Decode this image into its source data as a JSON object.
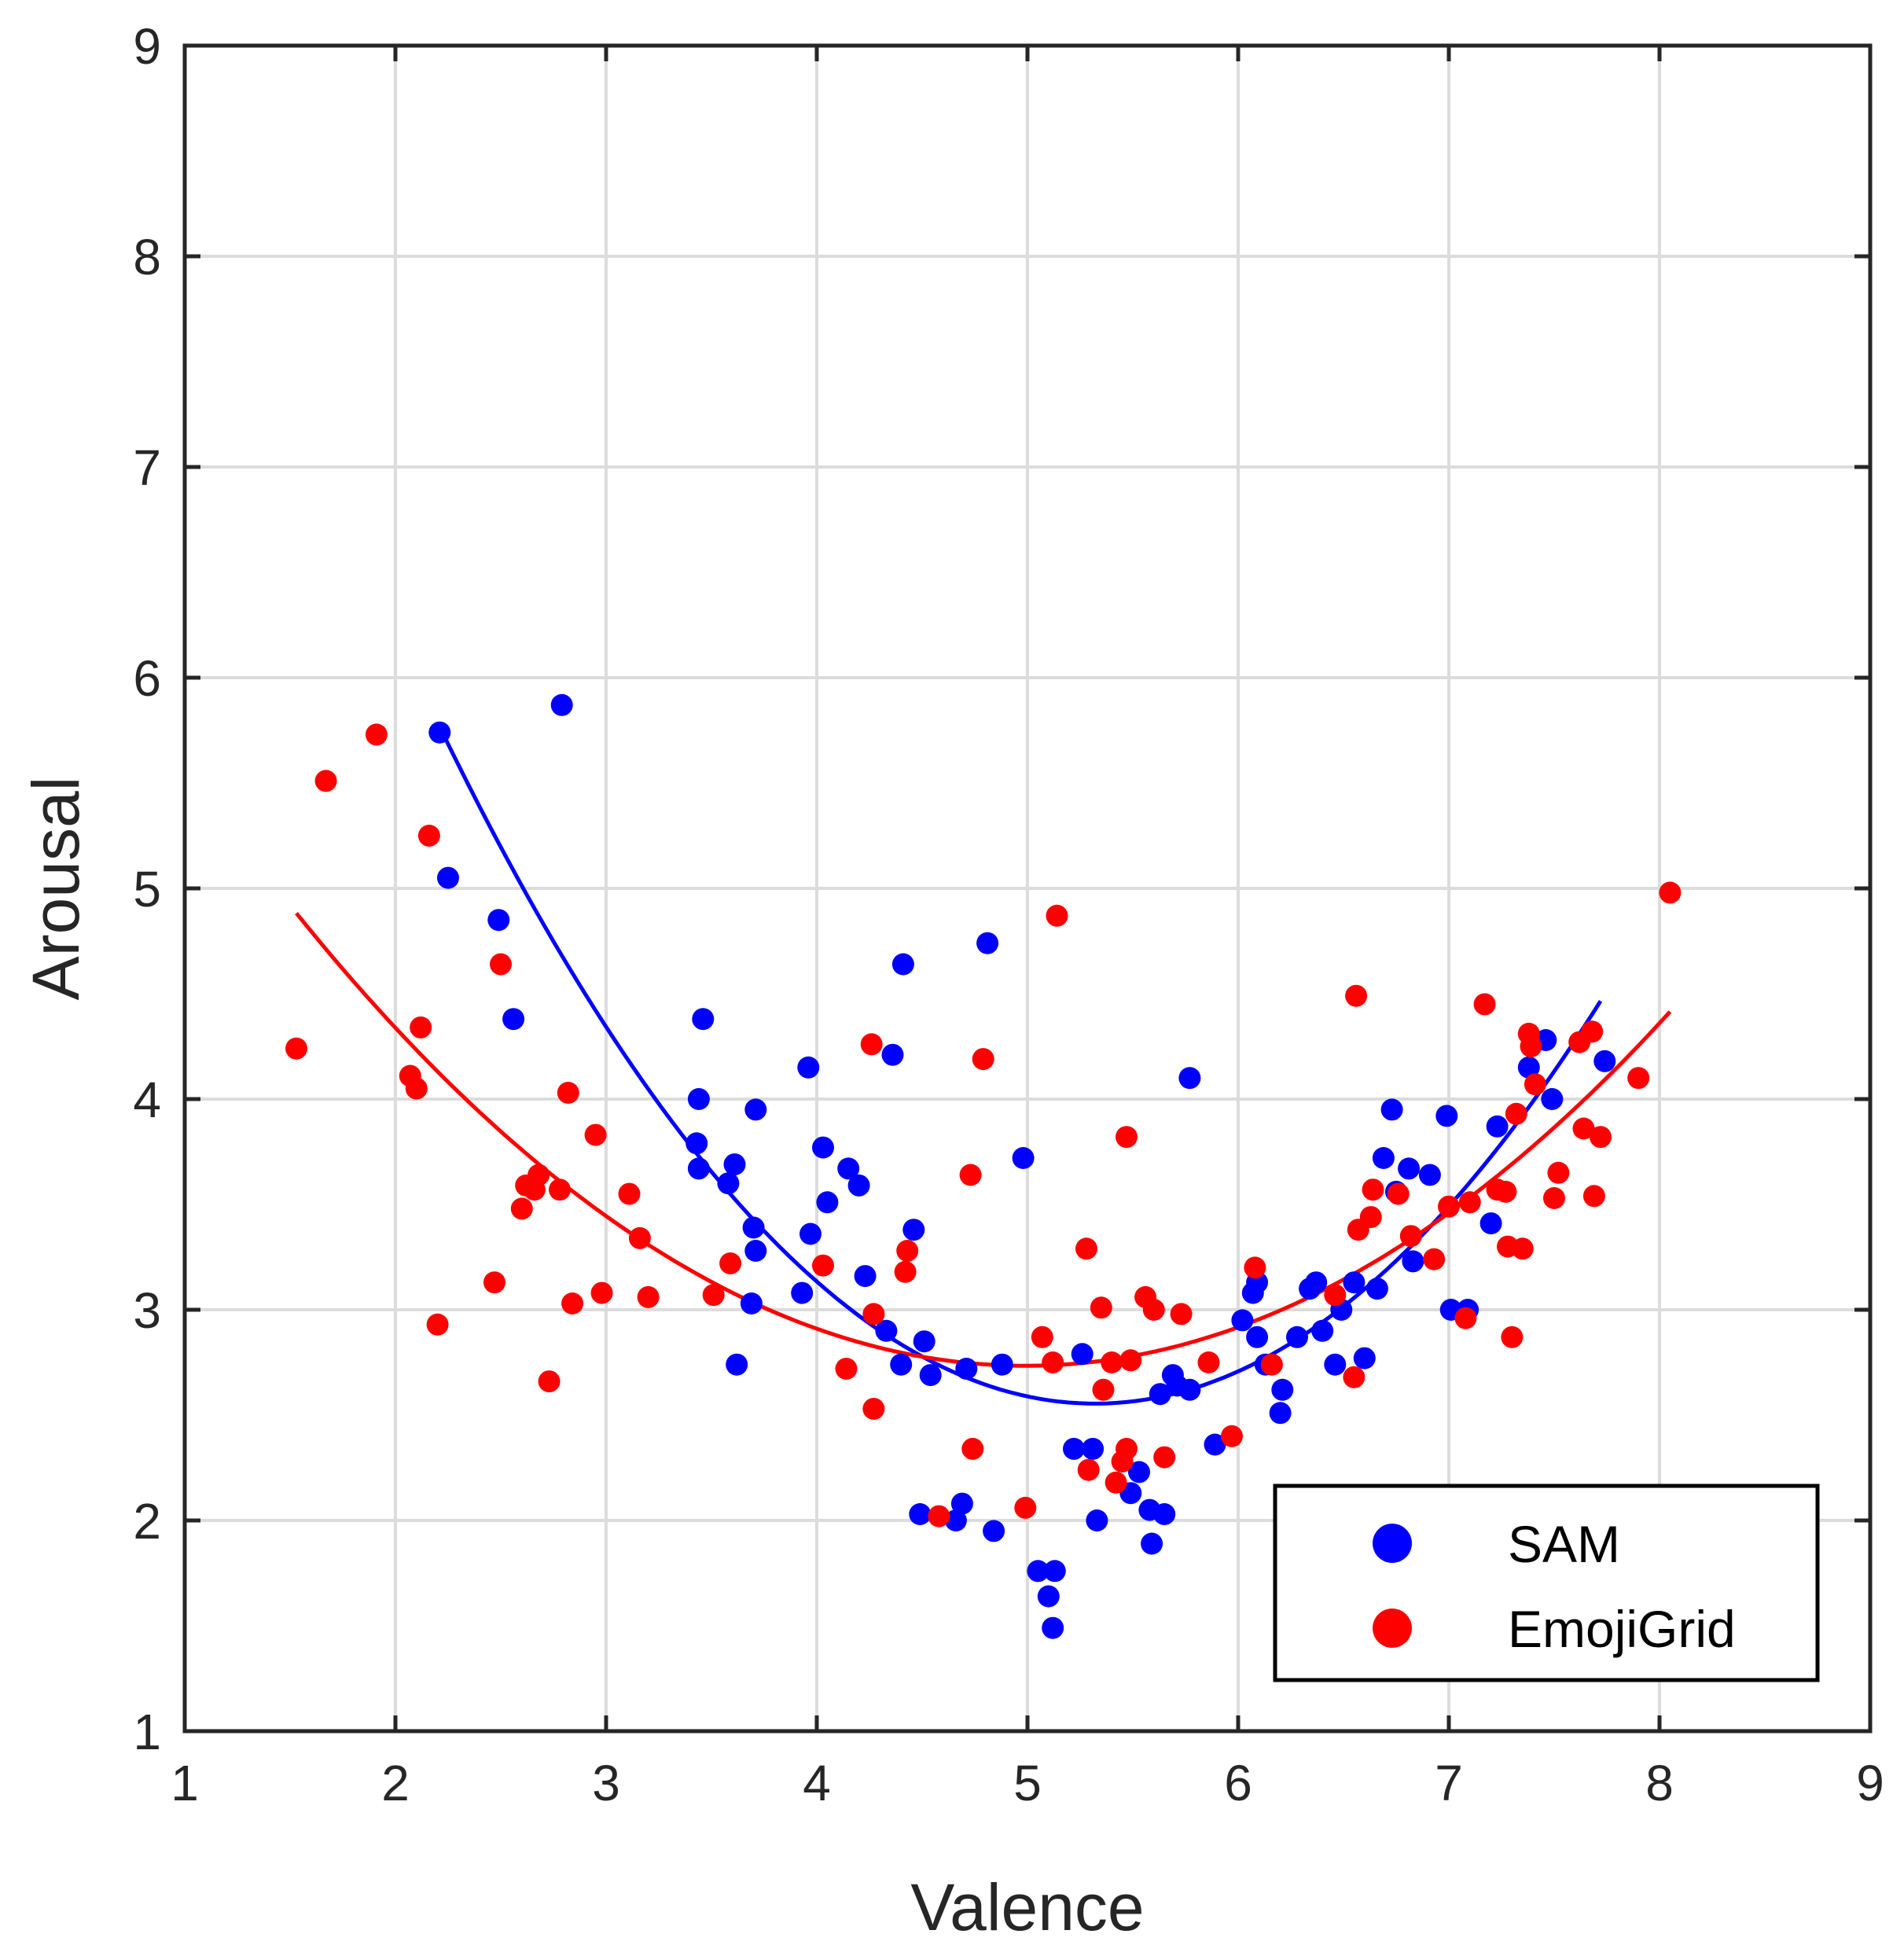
{
  "chart_data": {
    "type": "scatter",
    "title": "",
    "xlabel": "Valence",
    "ylabel": "Arousal",
    "xlim": [
      1,
      9
    ],
    "ylim": [
      1,
      9
    ],
    "xticks": [
      "1",
      "2",
      "3",
      "4",
      "5",
      "6",
      "7",
      "8",
      "9"
    ],
    "yticks": [
      "1",
      "2",
      "3",
      "4",
      "5",
      "6",
      "7",
      "8",
      "9"
    ],
    "grid": true,
    "legend_position": "bottom-right",
    "series": [
      {
        "name": "SAM",
        "color": "#0000ff",
        "points": [
          [
            2.21,
            5.74
          ],
          [
            2.25,
            5.05
          ],
          [
            2.49,
            4.85
          ],
          [
            2.56,
            4.38
          ],
          [
            2.79,
            5.87
          ],
          [
            3.43,
            3.79
          ],
          [
            3.44,
            4.0
          ],
          [
            3.44,
            3.67
          ],
          [
            3.46,
            4.38
          ],
          [
            3.58,
            3.6
          ],
          [
            3.61,
            3.69
          ],
          [
            3.62,
            2.74
          ],
          [
            3.69,
            3.03
          ],
          [
            3.7,
            3.39
          ],
          [
            3.71,
            3.28
          ],
          [
            3.71,
            3.95
          ],
          [
            3.93,
            3.08
          ],
          [
            3.96,
            4.15
          ],
          [
            3.97,
            3.36
          ],
          [
            4.03,
            3.77
          ],
          [
            4.05,
            3.51
          ],
          [
            4.15,
            3.67
          ],
          [
            4.2,
            3.59
          ],
          [
            4.23,
            3.16
          ],
          [
            4.33,
            2.9
          ],
          [
            4.36,
            4.21
          ],
          [
            4.4,
            2.74
          ],
          [
            4.41,
            4.64
          ],
          [
            4.46,
            3.38
          ],
          [
            4.49,
            2.03
          ],
          [
            4.51,
            2.85
          ],
          [
            4.54,
            2.69
          ],
          [
            4.66,
            2.0
          ],
          [
            4.69,
            2.08
          ],
          [
            4.71,
            2.72
          ],
          [
            4.81,
            4.74
          ],
          [
            4.84,
            1.95
          ],
          [
            4.88,
            2.74
          ],
          [
            4.98,
            3.72
          ],
          [
            5.05,
            1.76
          ],
          [
            5.1,
            1.64
          ],
          [
            5.12,
            1.49
          ],
          [
            5.13,
            1.76
          ],
          [
            5.22,
            2.34
          ],
          [
            5.26,
            2.79
          ],
          [
            5.31,
            2.34
          ],
          [
            5.33,
            2.0
          ],
          [
            5.49,
            2.13
          ],
          [
            5.53,
            2.23
          ],
          [
            5.58,
            2.05
          ],
          [
            5.59,
            1.89
          ],
          [
            5.63,
            2.6
          ],
          [
            5.65,
            2.03
          ],
          [
            5.69,
            2.69
          ],
          [
            5.71,
            2.64
          ],
          [
            5.77,
            2.62
          ],
          [
            5.77,
            4.1
          ],
          [
            5.89,
            2.36
          ],
          [
            6.02,
            2.95
          ],
          [
            6.07,
            3.08
          ],
          [
            6.09,
            3.13
          ],
          [
            6.09,
            2.87
          ],
          [
            6.13,
            2.74
          ],
          [
            6.2,
            2.51
          ],
          [
            6.21,
            2.62
          ],
          [
            6.28,
            2.87
          ],
          [
            6.34,
            3.1
          ],
          [
            6.37,
            3.13
          ],
          [
            6.4,
            2.9
          ],
          [
            6.46,
            2.74
          ],
          [
            6.49,
            3.0
          ],
          [
            6.55,
            3.13
          ],
          [
            6.6,
            2.77
          ],
          [
            6.66,
            3.1
          ],
          [
            6.69,
            3.72
          ],
          [
            6.73,
            3.95
          ],
          [
            6.75,
            3.56
          ],
          [
            6.81,
            3.67
          ],
          [
            6.83,
            3.23
          ],
          [
            6.91,
            3.64
          ],
          [
            6.99,
            3.92
          ],
          [
            7.01,
            3.0
          ],
          [
            7.09,
            3.0
          ],
          [
            7.2,
            3.41
          ],
          [
            7.23,
            3.87
          ],
          [
            7.38,
            4.15
          ],
          [
            7.46,
            4.28
          ],
          [
            7.49,
            4.0
          ],
          [
            7.74,
            4.18
          ]
        ],
        "fit_curve": {
          "x_range": [
            2.21,
            7.72
          ],
          "points": [
            [
              2.21,
              5.74
            ],
            [
              3.0,
              4.36
            ],
            [
              4.0,
              3.18
            ],
            [
              5.0,
              2.59
            ],
            [
              5.3,
              2.52
            ],
            [
              6.0,
              2.71
            ],
            [
              7.0,
              3.45
            ],
            [
              7.72,
              4.5
            ]
          ]
        }
      },
      {
        "name": "EmojiGrid",
        "color": "#ff0000",
        "points": [
          [
            1.53,
            4.24
          ],
          [
            1.67,
            5.51
          ],
          [
            1.91,
            5.73
          ],
          [
            2.07,
            4.11
          ],
          [
            2.1,
            4.05
          ],
          [
            2.12,
            4.34
          ],
          [
            2.16,
            5.25
          ],
          [
            2.2,
            2.93
          ],
          [
            2.47,
            3.13
          ],
          [
            2.5,
            4.64
          ],
          [
            2.6,
            3.48
          ],
          [
            2.62,
            3.59
          ],
          [
            2.66,
            3.57
          ],
          [
            2.68,
            3.64
          ],
          [
            2.73,
            2.66
          ],
          [
            2.78,
            3.57
          ],
          [
            2.82,
            4.03
          ],
          [
            2.84,
            3.03
          ],
          [
            2.95,
            3.83
          ],
          [
            2.98,
            3.08
          ],
          [
            3.11,
            3.55
          ],
          [
            3.16,
            3.34
          ],
          [
            3.2,
            3.06
          ],
          [
            3.51,
            3.07
          ],
          [
            3.59,
            3.22
          ],
          [
            4.03,
            3.21
          ],
          [
            4.14,
            2.72
          ],
          [
            4.26,
            4.26
          ],
          [
            4.27,
            2.53
          ],
          [
            4.27,
            2.98
          ],
          [
            4.42,
            3.18
          ],
          [
            4.43,
            3.28
          ],
          [
            4.58,
            2.02
          ],
          [
            4.73,
            3.64
          ],
          [
            4.74,
            2.34
          ],
          [
            4.79,
            4.19
          ],
          [
            4.99,
            2.06
          ],
          [
            5.07,
            2.87
          ],
          [
            5.12,
            2.75
          ],
          [
            5.14,
            4.87
          ],
          [
            5.28,
            3.29
          ],
          [
            5.29,
            2.24
          ],
          [
            5.35,
            3.01
          ],
          [
            5.36,
            2.62
          ],
          [
            5.4,
            2.75
          ],
          [
            5.42,
            2.18
          ],
          [
            5.45,
            2.28
          ],
          [
            5.47,
            2.34
          ],
          [
            5.47,
            3.82
          ],
          [
            5.49,
            2.76
          ],
          [
            5.56,
            3.06
          ],
          [
            5.6,
            3.0
          ],
          [
            5.65,
            2.3
          ],
          [
            5.73,
            2.98
          ],
          [
            5.86,
            2.75
          ],
          [
            5.97,
            2.4
          ],
          [
            6.08,
            3.2
          ],
          [
            6.16,
            2.74
          ],
          [
            6.46,
            3.07
          ],
          [
            6.55,
            2.68
          ],
          [
            6.56,
            4.49
          ],
          [
            6.57,
            3.38
          ],
          [
            6.63,
            3.44
          ],
          [
            6.64,
            3.57
          ],
          [
            6.76,
            3.55
          ],
          [
            6.82,
            3.35
          ],
          [
            6.93,
            3.24
          ],
          [
            7.0,
            3.49
          ],
          [
            7.08,
            2.96
          ],
          [
            7.1,
            3.51
          ],
          [
            7.17,
            4.45
          ],
          [
            7.23,
            3.57
          ],
          [
            7.27,
            3.56
          ],
          [
            7.28,
            3.3
          ],
          [
            7.3,
            2.87
          ],
          [
            7.32,
            3.93
          ],
          [
            7.35,
            3.29
          ],
          [
            7.38,
            4.31
          ],
          [
            7.39,
            4.25
          ],
          [
            7.41,
            4.07
          ],
          [
            7.5,
            3.53
          ],
          [
            7.52,
            3.65
          ],
          [
            7.62,
            4.27
          ],
          [
            7.64,
            3.86
          ],
          [
            7.68,
            4.32
          ],
          [
            7.69,
            3.54
          ],
          [
            7.72,
            3.82
          ],
          [
            7.9,
            4.1
          ],
          [
            8.05,
            4.98
          ]
        ],
        "fit_curve": {
          "x_range": [
            1.53,
            8.05
          ],
          "points": [
            [
              1.53,
              4.84
            ],
            [
              2.0,
              4.38
            ],
            [
              3.0,
              3.45
            ],
            [
              4.0,
              2.93
            ],
            [
              5.0,
              2.72
            ],
            [
              6.0,
              2.9
            ],
            [
              7.0,
              3.45
            ],
            [
              8.05,
              4.43
            ]
          ]
        }
      }
    ]
  }
}
